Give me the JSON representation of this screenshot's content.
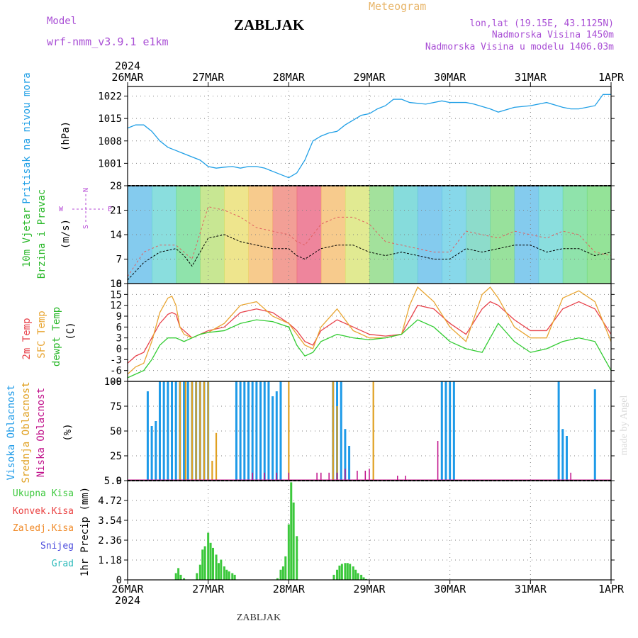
{
  "header": {
    "model_label": "Model",
    "model_name": "wrf-nmm_v3.9.1 e1km",
    "station": "ZABLJAK",
    "product": "Meteogram",
    "coords": "lon,lat (19.15E, 43.1125N)",
    "elevation": "Nadmorska Visina 1450m",
    "model_elevation": "Nadmorska Visina u modelu 1406.03m"
  },
  "footer": {
    "station": "ZABLJAK",
    "credit": "made by Angel"
  },
  "time_axis": {
    "year": "2024",
    "date_labels": [
      "26MAR",
      "27MAR",
      "28MAR",
      "29MAR",
      "30MAR",
      "31MAR",
      "1APR"
    ],
    "day_range": [
      0,
      6
    ]
  },
  "colors": {
    "pressure": "#1f9fe6",
    "t2m": "#e8434c",
    "tsfc": "#e8a532",
    "dewpoint": "#33cc33",
    "cloud_high": "#1d9ae8",
    "cloud_mid": "#e0a020",
    "cloud_low": "#c0108a",
    "rain_total": "#3cc83c",
    "rain_conv": "#ea4040",
    "freezing": "#f08a28",
    "snow": "#4b4bdc",
    "graupel": "#29b9b9",
    "wind_ylabel_1": "#2ab82a",
    "wind_ylabel_2": "#2ab82a",
    "compass": "#b64bd6",
    "header_purple": "#a94fd5",
    "header_orange": "#e8b66b"
  },
  "chart_data": [
    {
      "id": "pressure",
      "type": "line",
      "ylabel_main": "Pritisak na nivou mora",
      "ylabel_unit": "(hPa)",
      "ylim": [
        994,
        1025
      ],
      "yticks": [
        1001,
        1008,
        1015,
        1022
      ],
      "grid": true,
      "series": [
        {
          "key": "pressure",
          "x": [
            0,
            0.1,
            0.2,
            0.3,
            0.4,
            0.5,
            0.6,
            0.7,
            0.8,
            0.9,
            1.0,
            1.1,
            1.2,
            1.3,
            1.4,
            1.5,
            1.6,
            1.7,
            1.8,
            1.9,
            2.0,
            2.1,
            2.2,
            2.3,
            2.4,
            2.5,
            2.6,
            2.7,
            2.8,
            2.9,
            3.0,
            3.1,
            3.2,
            3.3,
            3.4,
            3.5,
            3.7,
            3.9,
            4.0,
            4.2,
            4.3,
            4.5,
            4.6,
            4.8,
            5.0,
            5.2,
            5.4,
            5.5,
            5.6,
            5.8,
            5.9,
            6.0
          ],
          "y": [
            1012,
            1013,
            1013,
            1011,
            1008,
            1006,
            1005,
            1004,
            1003,
            1002,
            1000,
            999.5,
            999.8,
            1000,
            999.5,
            1000,
            1000,
            999.5,
            998.5,
            997.5,
            996.5,
            998,
            1002,
            1008,
            1009.5,
            1010.5,
            1011,
            1013,
            1014.5,
            1016,
            1016.5,
            1018,
            1019,
            1021,
            1021,
            1020,
            1019.5,
            1020.5,
            1020,
            1020,
            1019.5,
            1018,
            1017,
            1018.5,
            1019,
            1020,
            1018.5,
            1018,
            1018,
            1019,
            1022.5,
            1022.5
          ]
        }
      ]
    },
    {
      "id": "wind",
      "type": "line",
      "ylabel_main_1": "10m Vjetar",
      "ylabel_main_2": "Brzina i Pravac",
      "ylabel_unit": "(m/s)",
      "ylim": [
        0,
        28
      ],
      "yticks": [
        0,
        7,
        14,
        21,
        28
      ],
      "grid": true,
      "compass": {
        "north": "N",
        "south": "S",
        "east": "E",
        "west": "W"
      },
      "series": [
        {
          "key": "wind_speed",
          "x": [
            0,
            0.2,
            0.4,
            0.6,
            0.7,
            0.8,
            1.0,
            1.2,
            1.4,
            1.6,
            1.8,
            2.0,
            2.1,
            2.2,
            2.4,
            2.6,
            2.8,
            3.0,
            3.2,
            3.4,
            3.6,
            3.8,
            4.0,
            4.2,
            4.4,
            4.6,
            4.8,
            5.0,
            5.2,
            5.4,
            5.6,
            5.8,
            6.0
          ],
          "y": [
            1,
            6,
            9,
            10,
            8,
            5,
            13,
            14,
            12,
            11,
            10,
            10,
            8,
            7,
            10,
            11,
            11,
            9,
            8,
            9,
            8,
            7,
            7,
            10,
            9,
            10,
            11,
            11,
            9,
            10,
            10,
            8,
            9
          ]
        },
        {
          "key": "wind_gust",
          "x": [
            0,
            0.2,
            0.4,
            0.6,
            0.8,
            1.0,
            1.2,
            1.4,
            1.6,
            1.8,
            2.0,
            2.1,
            2.2,
            2.4,
            2.6,
            2.8,
            3.0,
            3.2,
            3.4,
            3.6,
            3.8,
            4.0,
            4.2,
            4.4,
            4.6,
            4.8,
            5.0,
            5.2,
            5.4,
            5.6,
            5.8,
            6.0
          ],
          "y": [
            2,
            9,
            11,
            11,
            7,
            22,
            21,
            19,
            16,
            15,
            14,
            12,
            11,
            17,
            19,
            19,
            17,
            12,
            11,
            10,
            9,
            9,
            15,
            14,
            13,
            15,
            14,
            13,
            15,
            14,
            9,
            8
          ]
        }
      ]
    },
    {
      "id": "temperature",
      "type": "line",
      "ylabel_1": "2m Temp",
      "ylabel_2": "SFC Temp",
      "ylabel_3": "dewpt Temp",
      "ylabel_unit": "(C)",
      "ylim": [
        -9,
        18
      ],
      "yticks": [
        -9,
        -6,
        -3,
        0,
        3,
        6,
        9,
        12,
        15,
        18
      ],
      "grid": true,
      "series": [
        {
          "key": "t2m",
          "name": "2m Temp",
          "x": [
            0,
            0.1,
            0.2,
            0.3,
            0.4,
            0.5,
            0.55,
            0.6,
            0.65,
            0.7,
            0.8,
            0.9,
            1.0,
            1.2,
            1.4,
            1.6,
            1.8,
            2.0,
            2.1,
            2.2,
            2.3,
            2.4,
            2.6,
            2.8,
            3.0,
            3.2,
            3.4,
            3.5,
            3.6,
            3.8,
            4.0,
            4.2,
            4.4,
            4.5,
            4.6,
            4.8,
            5.0,
            5.2,
            5.4,
            5.6,
            5.8,
            6.0
          ],
          "y": [
            -4,
            -2,
            -1,
            3,
            7,
            9.5,
            10,
            9.5,
            6,
            5,
            3,
            4,
            5,
            6,
            10,
            11,
            10,
            7,
            5,
            2,
            1,
            5,
            8,
            6,
            4,
            3.5,
            4,
            8,
            12,
            11,
            7,
            4,
            11,
            13,
            12,
            8,
            5,
            5,
            11,
            13,
            11,
            4
          ]
        },
        {
          "key": "tsfc",
          "name": "SFC Temp",
          "x": [
            0,
            0.1,
            0.2,
            0.3,
            0.4,
            0.5,
            0.55,
            0.6,
            0.65,
            0.7,
            0.8,
            0.9,
            1.0,
            1.2,
            1.4,
            1.6,
            1.8,
            2.0,
            2.1,
            2.2,
            2.3,
            2.4,
            2.6,
            2.8,
            3.0,
            3.2,
            3.4,
            3.5,
            3.6,
            3.8,
            4.0,
            4.2,
            4.4,
            4.5,
            4.6,
            4.8,
            5.0,
            5.2,
            5.4,
            5.6,
            5.8,
            6.0
          ],
          "y": [
            -7,
            -5,
            -4,
            2,
            10,
            14,
            14.5,
            12,
            6,
            4,
            3,
            4,
            4.5,
            7,
            12,
            13,
            9,
            7,
            4,
            1,
            0,
            6,
            11,
            5,
            3,
            3,
            4,
            12,
            17,
            13,
            6,
            2,
            15,
            17,
            14,
            6,
            3,
            3,
            14,
            16,
            13,
            2
          ]
        },
        {
          "key": "dewpoint",
          "name": "dewpt Temp",
          "x": [
            0,
            0.1,
            0.2,
            0.3,
            0.4,
            0.5,
            0.6,
            0.7,
            0.8,
            0.9,
            1.0,
            1.2,
            1.4,
            1.6,
            1.8,
            2.0,
            2.1,
            2.2,
            2.3,
            2.4,
            2.6,
            2.8,
            3.0,
            3.2,
            3.4,
            3.6,
            3.8,
            4.0,
            4.2,
            4.4,
            4.5,
            4.6,
            4.8,
            5.0,
            5.2,
            5.4,
            5.6,
            5.8,
            6.0
          ],
          "y": [
            -8,
            -7,
            -6,
            -3,
            1,
            3,
            3,
            2,
            3,
            4,
            4.5,
            5,
            7,
            8,
            7.5,
            6,
            1,
            -2,
            -1,
            2,
            4,
            3,
            2.5,
            3,
            4,
            8,
            6,
            2,
            0,
            -1,
            3,
            7,
            2,
            -1,
            0,
            2,
            3,
            2,
            -6
          ]
        }
      ]
    },
    {
      "id": "clouds",
      "type": "bar",
      "ylabel_1": "Visoka Oblacnost",
      "ylabel_2": "Srednja Oblacnost",
      "ylabel_3": "Niska Oblacnost",
      "ylabel_unit": "(%)",
      "ylim": [
        0,
        100
      ],
      "yticks": [
        0,
        25,
        50,
        75,
        100
      ],
      "grid": true,
      "series": [
        {
          "key": "cloud_high",
          "name": "Visoka Oblacnost",
          "x": [
            0.25,
            0.3,
            0.35,
            0.4,
            0.45,
            0.5,
            0.55,
            0.6,
            0.65,
            0.7,
            0.75,
            0.8,
            0.85,
            0.9,
            0.95,
            1.0,
            1.35,
            1.4,
            1.45,
            1.5,
            1.55,
            1.6,
            1.65,
            1.7,
            1.75,
            1.8,
            1.85,
            1.9,
            2.55,
            2.6,
            2.65,
            2.7,
            2.75,
            3.9,
            3.95,
            4.0,
            4.05,
            5.35,
            5.4,
            5.45,
            5.8
          ],
          "y": [
            90,
            55,
            60,
            100,
            100,
            100,
            100,
            100,
            100,
            100,
            100,
            100,
            100,
            100,
            100,
            100,
            100,
            100,
            100,
            100,
            100,
            100,
            100,
            100,
            100,
            85,
            90,
            100,
            100,
            100,
            100,
            52,
            35,
            100,
            100,
            100,
            100,
            100,
            52,
            45,
            92
          ]
        },
        {
          "key": "cloud_mid",
          "name": "Srednja Oblacnost",
          "x": [
            0.65,
            0.72,
            0.8,
            0.85,
            0.9,
            0.95,
            1.0,
            1.05,
            1.1,
            2.0,
            2.55,
            2.6,
            3.05
          ],
          "y": [
            100,
            100,
            100,
            100,
            100,
            100,
            100,
            20,
            48,
            100,
            100,
            75,
            100
          ]
        },
        {
          "key": "cloud_low",
          "name": "Niska Oblacnost",
          "x": [
            1.55,
            1.7,
            1.85,
            2.0,
            2.35,
            2.4,
            2.5,
            2.6,
            2.7,
            2.85,
            2.95,
            3.0,
            3.35,
            3.45,
            3.85,
            5.5
          ],
          "y": [
            8,
            8,
            8,
            8,
            8,
            8,
            8,
            8,
            12,
            10,
            10,
            12,
            5,
            5,
            40,
            8
          ]
        }
      ]
    },
    {
      "id": "precip",
      "type": "bar",
      "ylabel_unit": "1hr Precip (mm)",
      "legend": [
        "Ukupna Kisa",
        "Konvek.Kisa",
        "Zaledj.Kisa",
        "Snijeg",
        "Grad"
      ],
      "ylim": [
        0,
        5.9
      ],
      "yticks": [
        0,
        1.18,
        2.36,
        3.54,
        4.72,
        5.9
      ],
      "ytick_labels": [
        "0",
        "1.18",
        "2.36",
        "3.54",
        "4.72",
        "5.9"
      ],
      "grid": true,
      "series": [
        {
          "key": "rain_total",
          "name": "Ukupna Kisa",
          "x": [
            0.6,
            0.63,
            0.66,
            0.7,
            0.86,
            0.9,
            0.93,
            0.96,
            1.0,
            1.03,
            1.06,
            1.1,
            1.13,
            1.16,
            1.2,
            1.23,
            1.26,
            1.3,
            1.33,
            1.86,
            1.9,
            1.93,
            1.96,
            2.0,
            2.03,
            2.06,
            2.1,
            2.56,
            2.6,
            2.63,
            2.66,
            2.7,
            2.73,
            2.76,
            2.8,
            2.83,
            2.86,
            2.9,
            2.93,
            2.96
          ],
          "y": [
            0.4,
            0.7,
            0.3,
            0.1,
            0.4,
            0.9,
            1.8,
            2.0,
            2.8,
            2.2,
            1.9,
            1.5,
            1.0,
            1.2,
            0.8,
            0.6,
            0.5,
            0.4,
            0.3,
            0.1,
            0.6,
            0.8,
            1.4,
            3.3,
            5.8,
            4.6,
            2.6,
            0.3,
            0.6,
            0.85,
            0.95,
            1.0,
            1.0,
            0.95,
            0.8,
            0.6,
            0.4,
            0.3,
            0.15,
            0.05
          ]
        }
      ]
    }
  ]
}
